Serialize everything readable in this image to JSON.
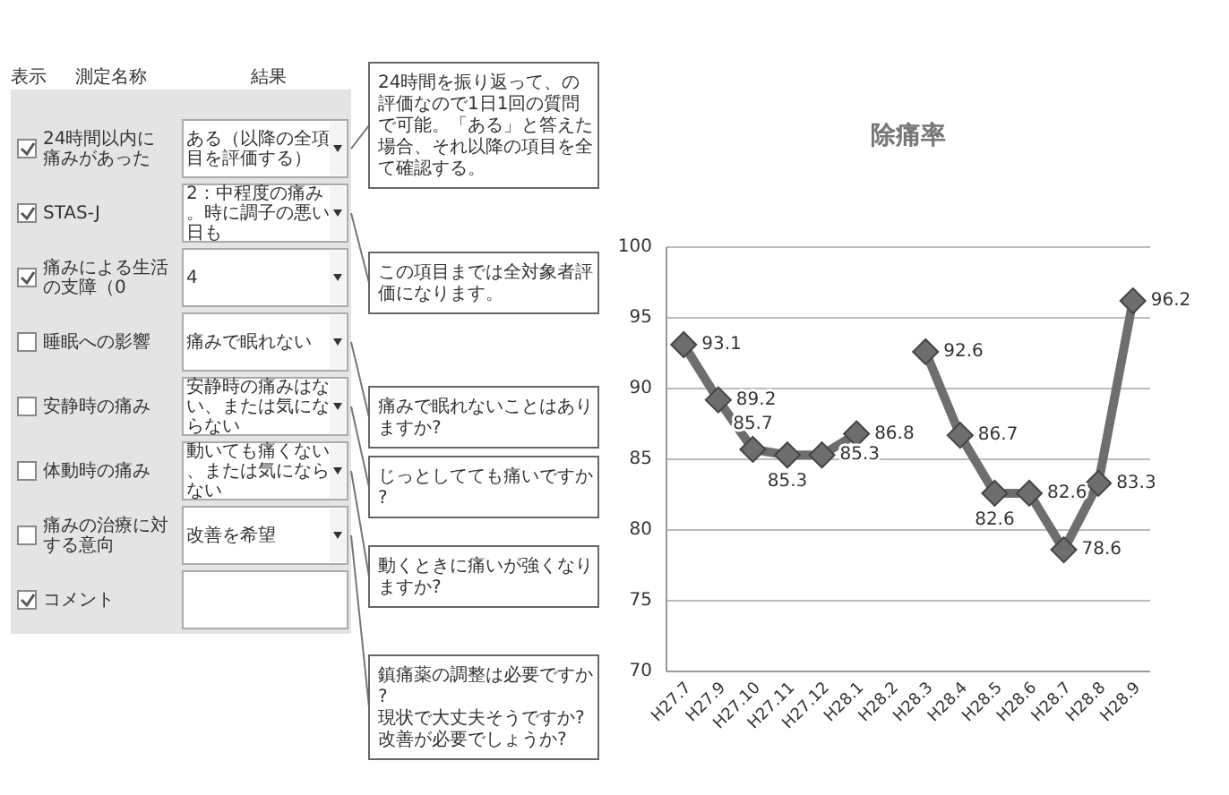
{
  "chart_data": [
    {
      "type": "other",
      "annotations": [
        "表示",
        "測定名称",
        "結果",
        "24時間以内に痛みがあった",
        "STAS-J",
        "痛みによる生活の支障（0",
        "睡眠への影響",
        "安静時の痛み",
        "体動時の痛み",
        "痛みの治療に対する意向",
        "コメント",
        "ある（以降の全項目を評価する）",
        "2：中程度の痛み。時に調子の悪い日も",
        "4",
        "痛みで眠れない",
        "安静時の痛みはない、または気にならない",
        "動いても痛くない、または気にならない",
        "改善を希望",
        "24時間を振り返って、の評価なので1日1回の質問で可能。「ある」と答えた場合、それ以降の項目を全て確認する。",
        "この項目までは全対象者評価になります。",
        "痛みで眠れないことはありますか?",
        "じっとしてても痛いですか?",
        "動くときに痛いが強くなりますか?",
        "鎮痛薬の調整は必要ですか?\n現状で大丈夫そうですか?\n改善が必要でしょうか?"
      ]
    },
    {
      "type": "line",
      "title": "除痛率",
      "categories": [
        "H27.7",
        "H27.9",
        "H27.10",
        "H27.11",
        "H27.12",
        "H28.1",
        "H28.2",
        "H28.3",
        "H28.4",
        "H28.5",
        "H28.6",
        "H28.7",
        "H28.8",
        "H28.9"
      ],
      "series": [
        {
          "color": "#6e6e6e",
          "values": [
            93.1,
            89.2,
            85.7,
            85.3,
            85.3,
            86.8,
            null,
            92.6,
            86.7,
            82.6,
            82.6,
            78.6,
            83.3,
            96.2
          ]
        }
      ],
      "ylim": [
        70,
        100
      ],
      "yticks": [
        70,
        75,
        80,
        85,
        90,
        95,
        100
      ],
      "grid": "y",
      "marker": "diamond",
      "data_labels": true
    }
  ]
}
